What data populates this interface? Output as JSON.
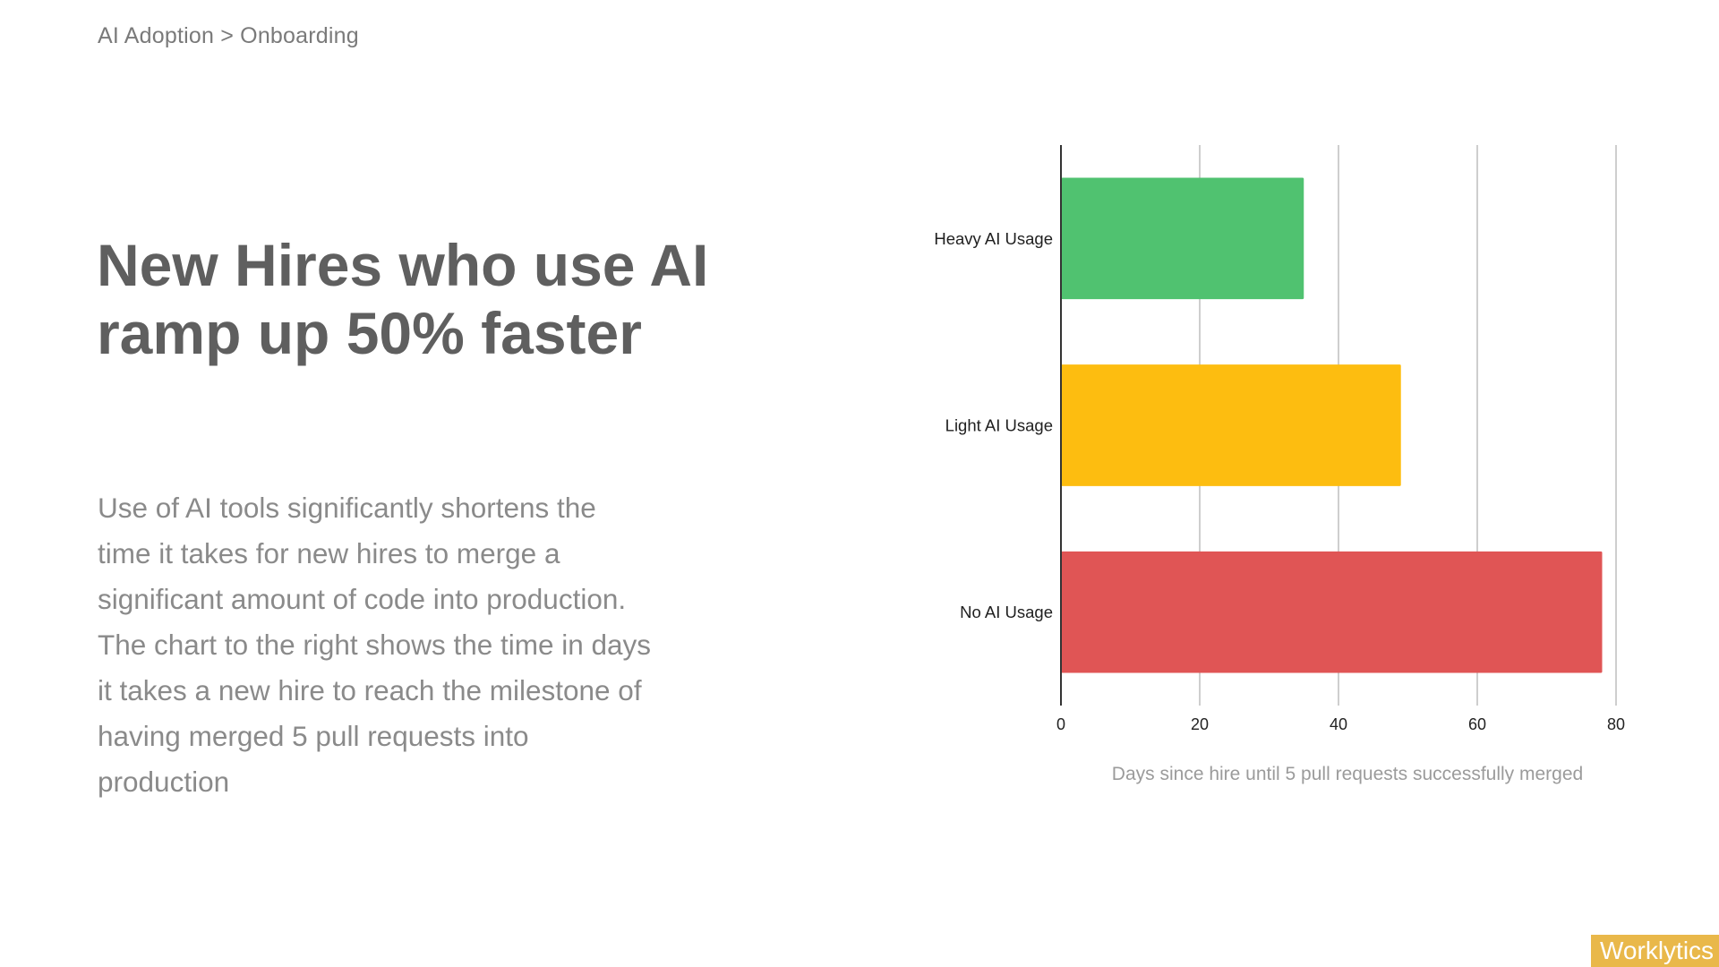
{
  "breadcrumb": "AI Adoption > Onboarding",
  "title": "New Hires who use AI ramp up 50% faster",
  "body": "Use of AI tools significantly shortens the time it takes for new hires to merge a significant amount of code into production. The chart to the right shows the time in days it takes a new hire to reach the milestone of having merged 5 pull requests into production",
  "logo_text": "Worklytics",
  "chart_data": {
    "type": "bar",
    "orientation": "horizontal",
    "categories": [
      "Heavy AI Usage",
      "Light AI Usage",
      "No AI Usage"
    ],
    "values": [
      35,
      49,
      78
    ],
    "colors": [
      "#50c270",
      "#fdbd10",
      "#e05555"
    ],
    "xlabel": "Days since hire until 5 pull requests successfully merged",
    "xlim": [
      0,
      80
    ],
    "xticks": [
      0,
      20,
      40,
      60,
      80
    ],
    "grid": true
  }
}
